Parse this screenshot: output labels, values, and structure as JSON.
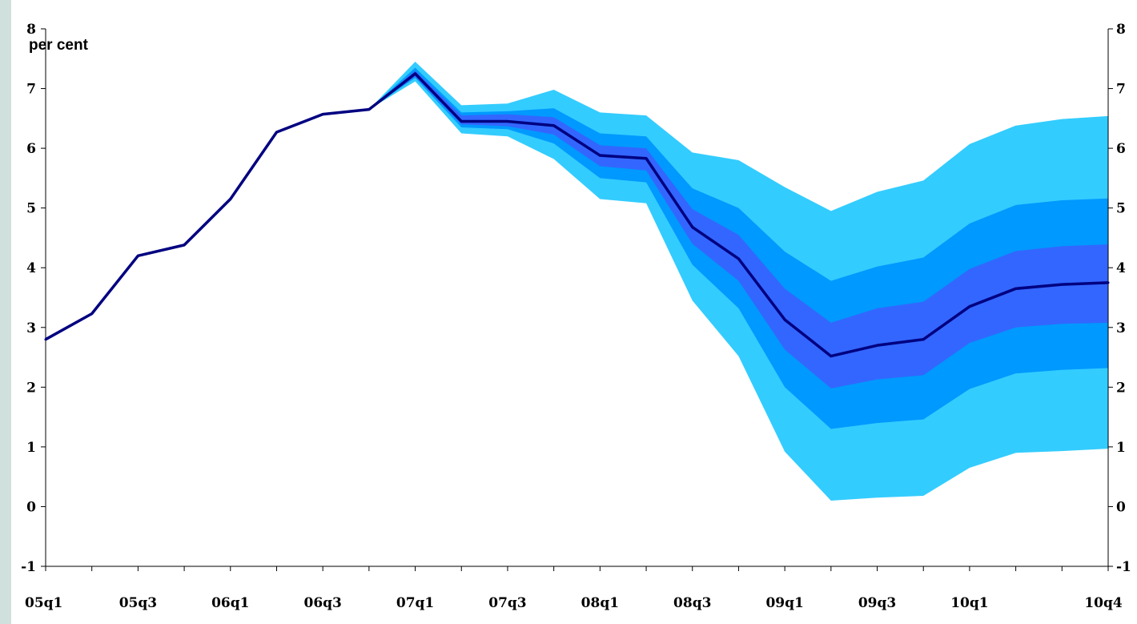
{
  "chart_data": {
    "type": "area",
    "title": "",
    "ylabel": "per cent",
    "xlabel": "",
    "ylim": [
      -1,
      8
    ],
    "y_ticks": [
      "-1",
      "0",
      "1",
      "2",
      "3",
      "4",
      "5",
      "6",
      "7",
      "8"
    ],
    "x_periods": [
      "05q1",
      "05q2",
      "05q3",
      "05q4",
      "06q1",
      "06q2",
      "06q3",
      "06q4",
      "07q1",
      "07q2",
      "07q3",
      "07q4",
      "08q1",
      "08q2",
      "08q3",
      "08q4",
      "09q1",
      "09q2",
      "09q3",
      "09q4",
      "10q1",
      "10q2",
      "10q3",
      "10q4"
    ],
    "x_tick_labels": [
      "05q1",
      "05q3",
      "06q1",
      "06q3",
      "07q1",
      "07q3",
      "08q1",
      "08q3",
      "09q1",
      "09q3",
      "10q1",
      "10q4"
    ],
    "colors": {
      "outer_band": "#33ccff",
      "middle_band": "#0099ff",
      "inner_band": "#3366ff",
      "central_line": "#000080"
    },
    "series": [
      {
        "name": "",
        "role": "central",
        "values": [
          2.8,
          3.23,
          4.2,
          4.38,
          5.15,
          6.27,
          6.57,
          6.65,
          7.25,
          6.45,
          6.45,
          6.38,
          5.88,
          5.83,
          4.68,
          4.15,
          3.13,
          2.52,
          2.7,
          2.8,
          3.35,
          3.65,
          3.72,
          3.75
        ]
      },
      {
        "name": "",
        "role": "band_outer",
        "start_index": 7,
        "upper": [
          6.65,
          7.45,
          6.72,
          6.75,
          6.98,
          6.6,
          6.55,
          5.93,
          5.8,
          5.35,
          4.95,
          5.27,
          5.46,
          6.07,
          6.38,
          6.49,
          6.54
        ],
        "lower": [
          6.65,
          7.12,
          6.25,
          6.2,
          5.82,
          5.15,
          5.08,
          3.45,
          2.52,
          0.92,
          0.1,
          0.15,
          0.18,
          0.65,
          0.9,
          0.93,
          0.97
        ]
      },
      {
        "name": "",
        "role": "band_middle",
        "start_index": 7,
        "upper": [
          6.65,
          7.35,
          6.6,
          6.62,
          6.67,
          6.25,
          6.2,
          5.33,
          5.0,
          4.27,
          3.78,
          4.02,
          4.17,
          4.74,
          5.05,
          5.13,
          5.16
        ],
        "lower": [
          6.65,
          7.18,
          6.35,
          6.32,
          6.08,
          5.5,
          5.43,
          4.05,
          3.32,
          2.0,
          1.3,
          1.4,
          1.46,
          1.97,
          2.23,
          2.29,
          2.32
        ]
      },
      {
        "name": "",
        "role": "band_inner",
        "start_index": 7,
        "upper": [
          6.65,
          7.3,
          6.55,
          6.57,
          6.52,
          6.05,
          6.0,
          4.98,
          4.55,
          3.65,
          3.08,
          3.32,
          3.43,
          3.98,
          4.28,
          4.36,
          4.39
        ],
        "lower": [
          6.65,
          7.2,
          6.4,
          6.37,
          6.23,
          5.7,
          5.63,
          4.4,
          3.78,
          2.63,
          1.98,
          2.13,
          2.2,
          2.74,
          3.0,
          3.06,
          3.08
        ]
      }
    ]
  }
}
